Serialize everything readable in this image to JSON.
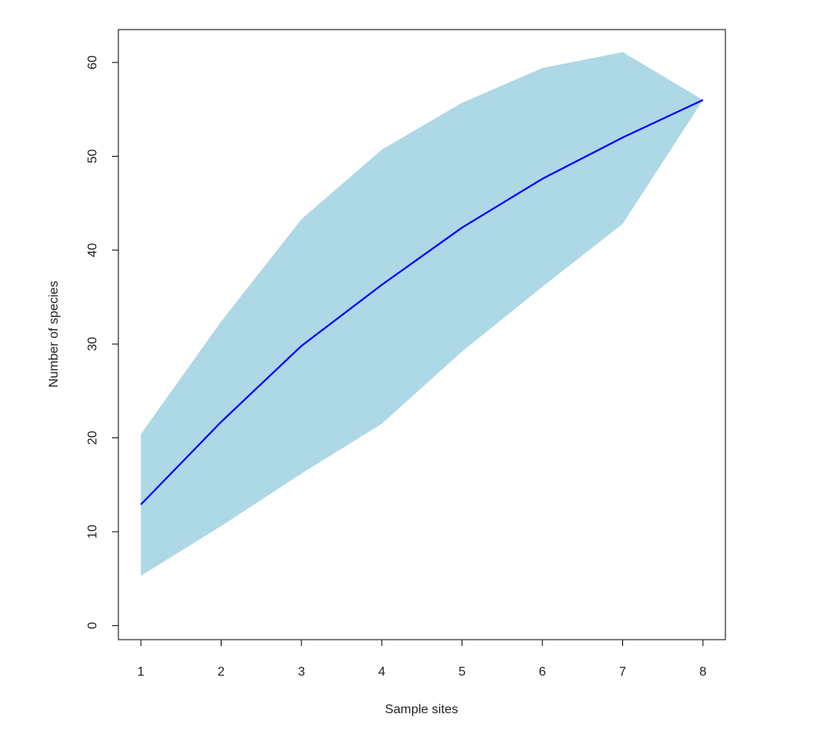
{
  "chart_data": {
    "type": "area",
    "title": "",
    "xlabel": "Sample sites",
    "ylabel": "Number of species",
    "x": [
      1,
      2,
      3,
      4,
      5,
      6,
      7,
      8
    ],
    "xlim": [
      0.72,
      8.28
    ],
    "ylim": [
      -1.5,
      63.5
    ],
    "xticks": [
      1,
      2,
      3,
      4,
      5,
      6,
      7,
      8
    ],
    "yticks": [
      0,
      10,
      20,
      30,
      40,
      50,
      60
    ],
    "grid": false,
    "legend": "none",
    "series": [
      {
        "role": "mean",
        "values": [
          12.9,
          21.7,
          29.8,
          36.3,
          42.4,
          47.6,
          52.0,
          56.0
        ],
        "color": "#0000FF"
      },
      {
        "role": "upper",
        "values": [
          20.4,
          32.4,
          43.3,
          50.7,
          55.7,
          59.4,
          61.1,
          56.0
        ]
      },
      {
        "role": "lower",
        "values": [
          5.3,
          10.6,
          16.2,
          21.5,
          29.2,
          36.1,
          42.8,
          56.0
        ]
      }
    ],
    "band_color": "#ADD8E6"
  }
}
